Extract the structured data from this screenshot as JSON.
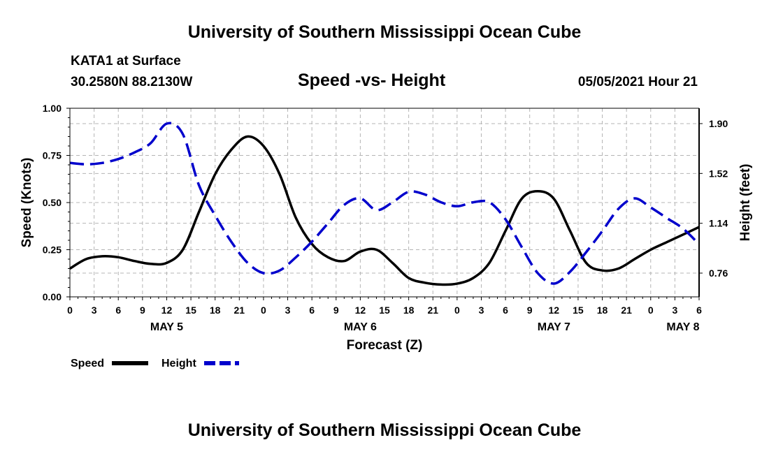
{
  "header": {
    "title": "University of Southern Mississippi Ocean Cube",
    "station": "KATA1 at Surface",
    "coords": "30.2580N  88.2130W",
    "datetime": "05/05/2021 Hour 21",
    "footer_title": "University of Southern Mississippi Ocean Cube"
  },
  "chart_data": {
    "type": "line",
    "title": "Speed -vs- Height",
    "xlabel": "Forecast (Z)",
    "ylabel": "Speed (Knots)",
    "y2label": "Height (feet)",
    "ylim": [
      0,
      1
    ],
    "y2lim": [
      0.579,
      2.017
    ],
    "yticks": [
      "0.00",
      "0.25",
      "0.50",
      "0.75",
      "1.00"
    ],
    "y2ticks": [
      "0.76",
      "1.14",
      "1.52",
      "1.90"
    ],
    "y2tick_values": [
      0.76,
      1.14,
      1.52,
      1.9
    ],
    "xlim": [
      0,
      78
    ],
    "xtick_hours": [
      0,
      3,
      6,
      9,
      12,
      15,
      18,
      21,
      24,
      27,
      30,
      33,
      36,
      39,
      42,
      45,
      48,
      51,
      54,
      57,
      60,
      63,
      66,
      69,
      72,
      75,
      78
    ],
    "xtick_labels": [
      "0",
      "3",
      "6",
      "9",
      "12",
      "15",
      "18",
      "21",
      "0",
      "3",
      "6",
      "9",
      "12",
      "15",
      "18",
      "21",
      "0",
      "3",
      "6",
      "9",
      "12",
      "15",
      "18",
      "21",
      "0",
      "3",
      "6"
    ],
    "day_labels": [
      "MAY 5",
      "MAY 6",
      "MAY 7",
      "MAY 8"
    ],
    "day_hours": [
      12,
      36,
      60,
      76
    ],
    "series": [
      {
        "name": "Speed",
        "axis": "left",
        "color": "#000000",
        "dash": "solid",
        "x": [
          0,
          2,
          4,
          6,
          8,
          10,
          12,
          14,
          16,
          18,
          20,
          22,
          24,
          26,
          28,
          30,
          32,
          34,
          36,
          38,
          40,
          42,
          44,
          46,
          48,
          50,
          52,
          54,
          56,
          58,
          60,
          62,
          64,
          66,
          68,
          70,
          72,
          74,
          76,
          78
        ],
        "y": [
          0.15,
          0.2,
          0.215,
          0.21,
          0.19,
          0.175,
          0.18,
          0.25,
          0.45,
          0.65,
          0.78,
          0.85,
          0.8,
          0.65,
          0.42,
          0.28,
          0.21,
          0.19,
          0.24,
          0.25,
          0.18,
          0.1,
          0.075,
          0.065,
          0.07,
          0.1,
          0.18,
          0.35,
          0.52,
          0.56,
          0.52,
          0.35,
          0.18,
          0.14,
          0.15,
          0.2,
          0.25,
          0.29,
          0.33,
          0.37
        ]
      },
      {
        "name": "Height",
        "axis": "right",
        "color": "#0000cc",
        "dash": "dashed",
        "x": [
          0,
          2,
          4,
          6,
          8,
          10,
          12,
          14,
          16,
          18,
          20,
          22,
          24,
          26,
          28,
          30,
          32,
          34,
          36,
          38,
          40,
          42,
          44,
          46,
          48,
          50,
          52,
          54,
          56,
          58,
          60,
          62,
          64,
          66,
          68,
          70,
          72,
          74,
          76,
          78
        ],
        "y": [
          1.6,
          1.59,
          1.6,
          1.63,
          1.68,
          1.75,
          1.9,
          1.82,
          1.43,
          1.2,
          1.0,
          0.84,
          0.76,
          0.78,
          0.88,
          1.0,
          1.14,
          1.28,
          1.33,
          1.24,
          1.3,
          1.38,
          1.36,
          1.3,
          1.27,
          1.3,
          1.3,
          1.17,
          0.96,
          0.76,
          0.68,
          0.77,
          0.92,
          1.08,
          1.25,
          1.33,
          1.26,
          1.18,
          1.1,
          0.98
        ]
      }
    ]
  },
  "legend": {
    "speed_label": "Speed",
    "height_label": "Height"
  }
}
